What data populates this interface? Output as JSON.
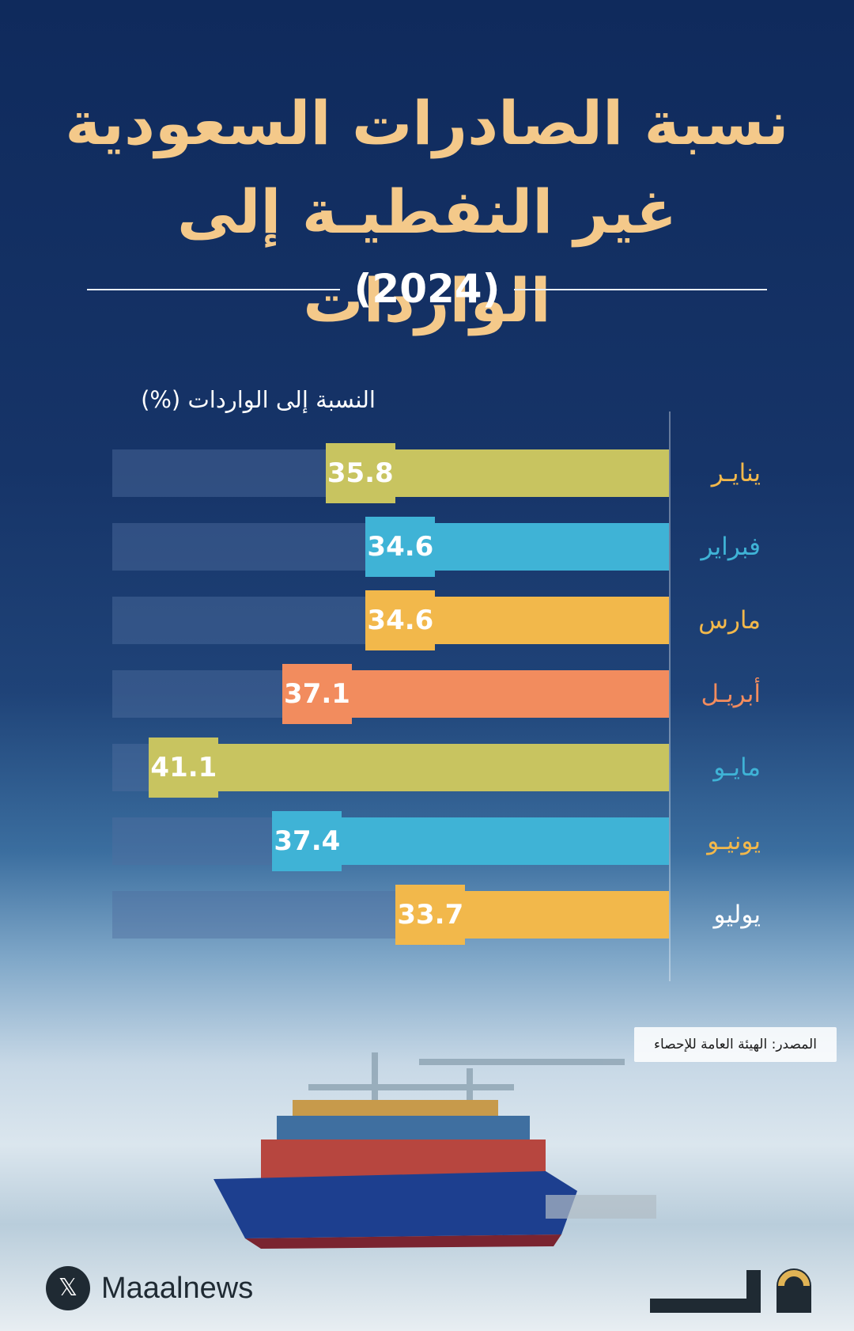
{
  "title_lines": [
    "نسبة الصادرات السعودية",
    "غير النفطيـة إلى الواردات"
  ],
  "year": "(2024)",
  "colors": {
    "olive": "#c8c460",
    "blue": "#3fb3d6",
    "yellow": "#f2b84b",
    "orange": "#f28c5e",
    "track": "#34507d"
  },
  "chart_data": {
    "type": "bar",
    "orientation": "horizontal",
    "ylabel": "النسبة إلى الواردات (%)",
    "categories": [
      "ينايـر",
      "فبراير",
      "مارس",
      "أبريـل",
      "مايـو",
      "يونيـو",
      "يوليو"
    ],
    "values": [
      35.8,
      34.6,
      34.6,
      37.1,
      41.1,
      37.4,
      33.7
    ],
    "value_labels": [
      "35.8",
      "34.6",
      "34.6",
      "37.1",
      "41.1",
      "37.4",
      "33.7"
    ],
    "bar_colors": [
      "#c8c460",
      "#3fb3d6",
      "#f2b84b",
      "#f28c5e",
      "#c8c460",
      "#3fb3d6",
      "#f2b84b"
    ],
    "month_colors": [
      "#f2b84b",
      "#3fb3d6",
      "#f2b84b",
      "#f28c5e",
      "#3fb3d6",
      "#f2b84b",
      "#ffffff"
    ],
    "xlim": [
      25.5,
      42.2
    ],
    "direction": "right-to-left"
  },
  "source": "المصدر: الهيئة العامة للإحصاء",
  "footer": {
    "x_glyph": "𝕏",
    "brand_name": "Maaalnews"
  },
  "icons": [
    "x-logo-icon",
    "maaal-logo-icon"
  ]
}
